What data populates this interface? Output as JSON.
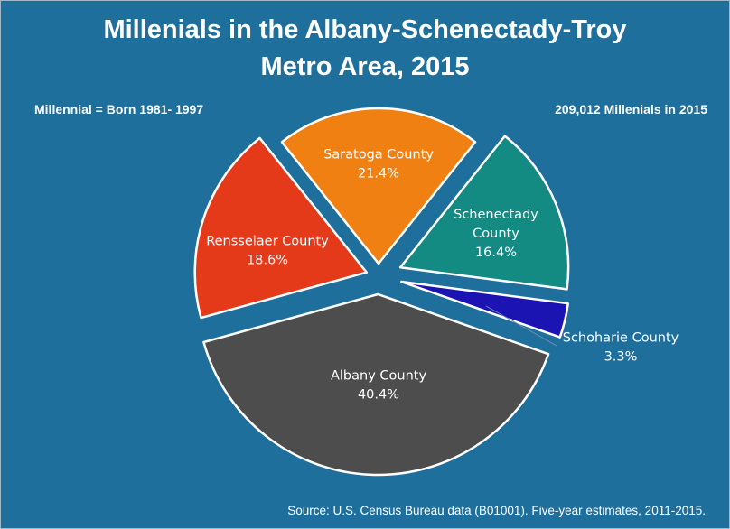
{
  "chart_data": {
    "type": "pie",
    "title": "Millenials in the Albany-Schenectady-Troy Metro Area, 2015",
    "title_lines": [
      "Millenials in the Albany-Schenectady-Troy",
      "Metro Area, 2015"
    ],
    "annotations": {
      "left": "Millennial = Born 1981- 1997",
      "right": "209,012 Millenials in 2015",
      "source": "Source: U.S. Census Bureau data (B01001). Five-year estimates, 2011-2015."
    },
    "slices": [
      {
        "label_lines": [
          "Saratoga County"
        ],
        "name": "Saratoga County",
        "value": 21.4,
        "value_label": "21.4%",
        "color": "#f08012"
      },
      {
        "label_lines": [
          "Schenectady",
          "County"
        ],
        "name": "Schenectady County",
        "value": 16.4,
        "value_label": "16.4%",
        "color": "#138a82"
      },
      {
        "label_lines": [
          "Schoharie County"
        ],
        "name": "Schoharie County",
        "value": 3.3,
        "value_label": "3.3%",
        "color": "#1c14b2"
      },
      {
        "label_lines": [
          "Albany County"
        ],
        "name": "Albany County",
        "value": 40.4,
        "value_label": "40.4%",
        "color": "#4d4d4d"
      },
      {
        "label_lines": [
          "Rensselaer County"
        ],
        "name": "Rensselaer County",
        "value": 18.6,
        "value_label": "18.6%",
        "color": "#e53a1a"
      }
    ],
    "legend": "none",
    "background_color": "#1f6f9c"
  }
}
